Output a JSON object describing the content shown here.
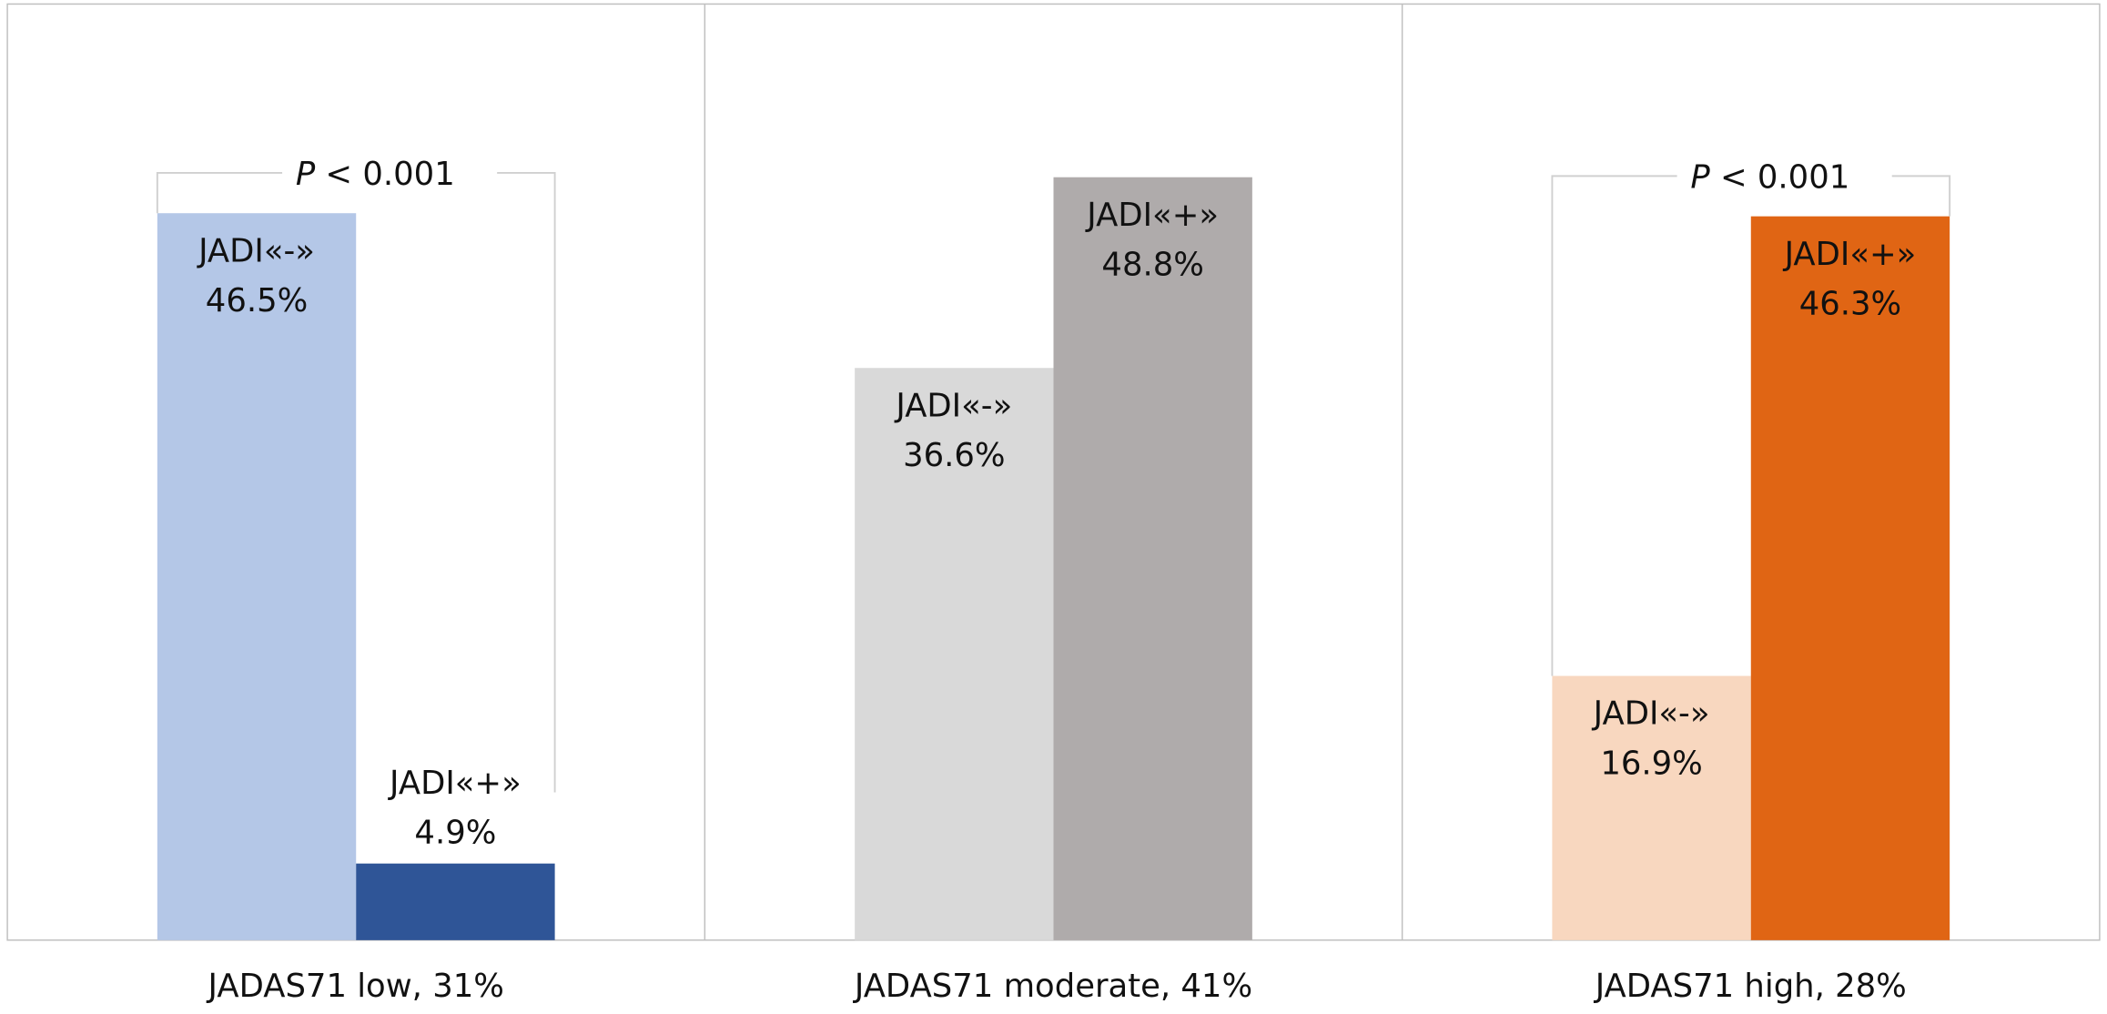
{
  "chart_data": {
    "type": "bar",
    "title": "",
    "xlabel": "",
    "ylabel": "",
    "ylim": [
      0,
      60
    ],
    "grid": false,
    "categories": [
      "JADAS71 low, 31%",
      "JADAS71 moderate, 41%",
      "JADAS71 high, 28%"
    ],
    "series": [
      {
        "name": "JADI«-»",
        "values": [
          46.5,
          36.6,
          16.9
        ],
        "colors": [
          "#B4C7E7",
          "#D9D9D9",
          "#F8D7BF"
        ]
      },
      {
        "name": "JADI«+»",
        "values": [
          4.9,
          48.8,
          46.3
        ],
        "colors": [
          "#2F5597",
          "#AFABAB",
          "#E06514"
        ]
      }
    ],
    "data_labels": [
      [
        {
          "name": "JADI«-»",
          "value": "46.5%"
        },
        {
          "name": "JADI«+»",
          "value": "4.9%"
        }
      ],
      [
        {
          "name": "JADI«-»",
          "value": "36.6%"
        },
        {
          "name": "JADI«+»",
          "value": "48.8%"
        }
      ],
      [
        {
          "name": "JADI«-»",
          "value": "16.9%"
        },
        {
          "name": "JADI«+»",
          "value": "46.3%"
        }
      ]
    ],
    "annotations": [
      {
        "group": 0,
        "p_symbol": "P",
        "text": "< 0.001"
      },
      {
        "group": 2,
        "p_symbol": "P",
        "text": "< 0.001"
      }
    ]
  }
}
